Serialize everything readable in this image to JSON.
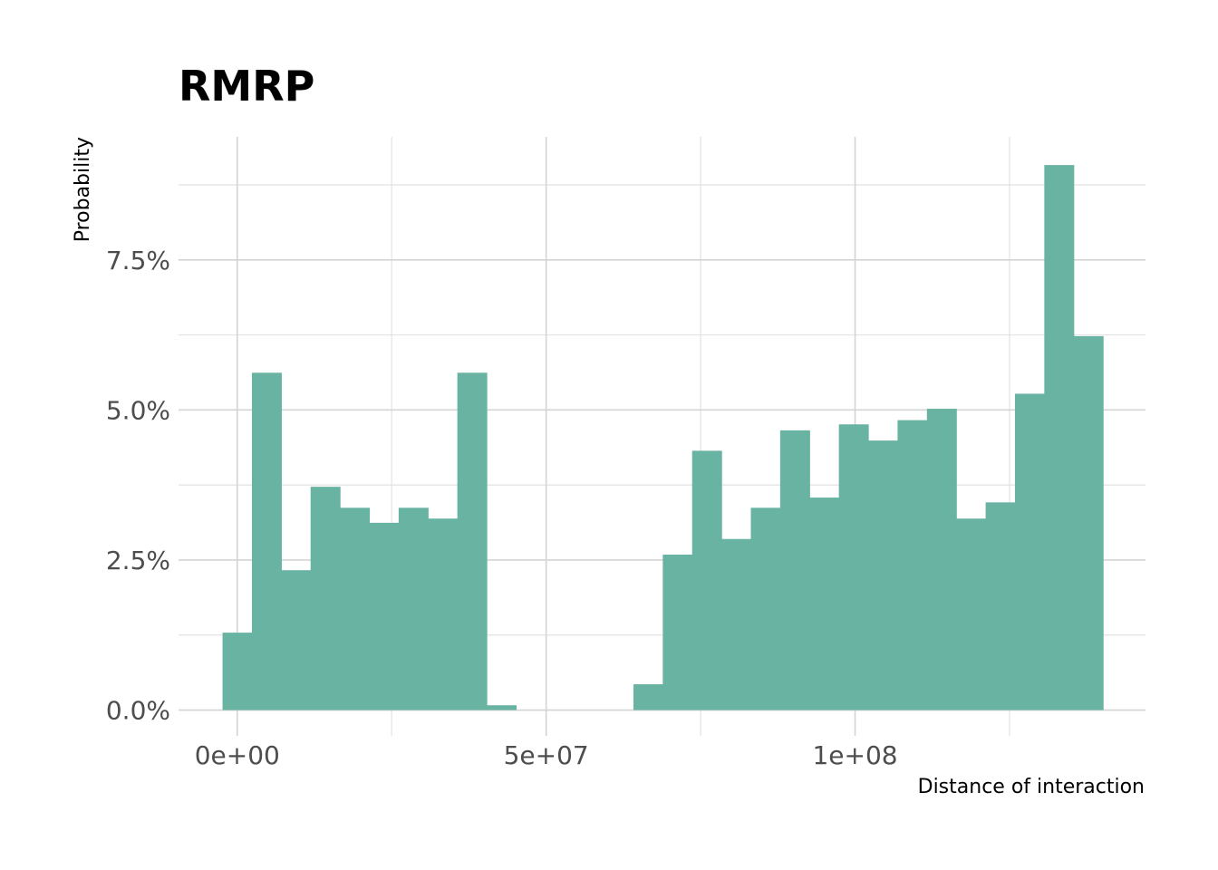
{
  "chart_data": {
    "type": "bar",
    "title": "RMRP",
    "xlabel": "Distance of interaction",
    "ylabel": "Probability",
    "bar_color": "#69b3a2",
    "grid": true,
    "bin_width": 4750000,
    "xlim": [
      -9500000,
      147000000
    ],
    "ylim": [
      -0.0043,
      0.0955
    ],
    "x_ticks": [
      {
        "value": 0,
        "label": "0e+00"
      },
      {
        "value": 50000000,
        "label": "5e+07"
      },
      {
        "value": 100000000,
        "label": "1e+08"
      }
    ],
    "x_minor_ticks": [
      25000000,
      75000000,
      125000000
    ],
    "y_ticks": [
      {
        "value": 0.0,
        "label": "0.0%"
      },
      {
        "value": 0.025,
        "label": "2.5%"
      },
      {
        "value": 0.05,
        "label": "5.0%"
      },
      {
        "value": 0.075,
        "label": "7.5%"
      }
    ],
    "y_minor_ticks": [
      0.0125,
      0.0375,
      0.0625,
      0.0875
    ],
    "bins": [
      {
        "x": 0,
        "value": 0.0129
      },
      {
        "x": 4750000,
        "value": 0.0562
      },
      {
        "x": 9500000,
        "value": 0.0233
      },
      {
        "x": 14250000,
        "value": 0.0372
      },
      {
        "x": 19000000,
        "value": 0.0337
      },
      {
        "x": 23750000,
        "value": 0.0312
      },
      {
        "x": 28500000,
        "value": 0.0337
      },
      {
        "x": 33250000,
        "value": 0.0319
      },
      {
        "x": 38000000,
        "value": 0.0562
      },
      {
        "x": 42750000,
        "value": 0.0008
      },
      {
        "x": 47500000,
        "value": 0
      },
      {
        "x": 52250000,
        "value": 0
      },
      {
        "x": 57000000,
        "value": 0
      },
      {
        "x": 61750000,
        "value": 0
      },
      {
        "x": 66500000,
        "value": 0.0043
      },
      {
        "x": 71250000,
        "value": 0.0259
      },
      {
        "x": 76000000,
        "value": 0.0432
      },
      {
        "x": 80750000,
        "value": 0.0285
      },
      {
        "x": 85500000,
        "value": 0.0337
      },
      {
        "x": 90250000,
        "value": 0.0466
      },
      {
        "x": 95000000,
        "value": 0.0354
      },
      {
        "x": 99750000,
        "value": 0.0476
      },
      {
        "x": 104500000,
        "value": 0.0449
      },
      {
        "x": 109250000,
        "value": 0.0483
      },
      {
        "x": 114000000,
        "value": 0.0502
      },
      {
        "x": 118750000,
        "value": 0.0319
      },
      {
        "x": 123500000,
        "value": 0.0346
      },
      {
        "x": 128250000,
        "value": 0.0527
      },
      {
        "x": 133000000,
        "value": 0.0908
      },
      {
        "x": 137750000,
        "value": 0.0623
      }
    ]
  }
}
